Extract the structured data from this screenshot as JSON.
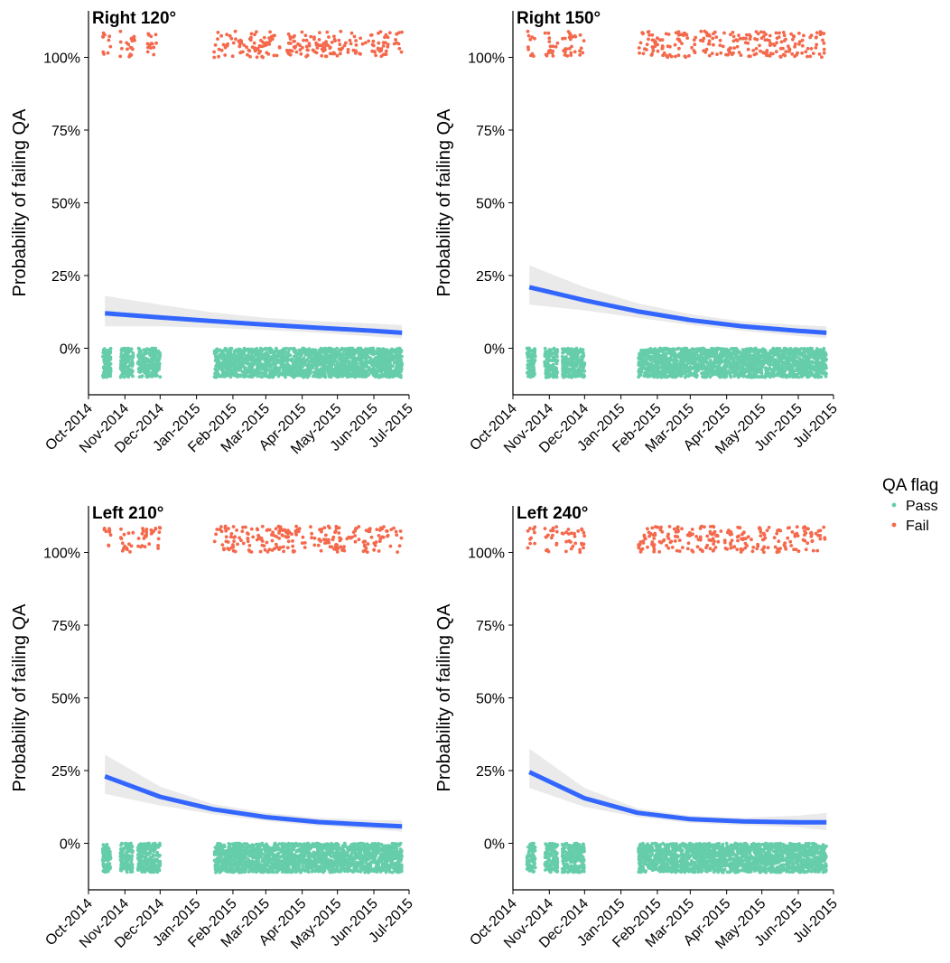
{
  "figure": {
    "legend": {
      "title": "QA flag",
      "position": "right",
      "items": [
        {
          "key": "pass",
          "label": "Pass",
          "color": "#66cdaa"
        },
        {
          "key": "fail",
          "label": "Fail",
          "color": "#f4694c"
        }
      ]
    },
    "trend_color": "#3366ff",
    "ribbon_color": "#d9d9d9"
  },
  "chart_data": [
    {
      "type": "scatter",
      "title": "Right 120°",
      "xlabel": "",
      "ylabel": "Probability of failing QA",
      "x_type": "date",
      "xlim": [
        "2014-10-01",
        "2015-07-01"
      ],
      "x_ticks": [
        "Oct-2014",
        "Nov-2014",
        "Dec-2014",
        "Jan-2015",
        "Feb-2015",
        "Mar-2015",
        "Apr-2015",
        "May-2015",
        "Jun-2015",
        "Jul-2015"
      ],
      "ylim": [
        -0.16,
        1.16
      ],
      "y_ticks": [
        "0%",
        "25%",
        "50%",
        "75%",
        "100%"
      ],
      "grid": false,
      "fail_bands": [
        [
          "2014-10-13",
          "2014-10-20"
        ],
        [
          "2014-10-28",
          "2014-11-10"
        ],
        [
          "2014-11-20",
          "2014-11-30"
        ],
        [
          "2015-01-16",
          "2015-06-25"
        ]
      ],
      "pass_bands": [
        [
          "2014-10-13",
          "2014-10-20"
        ],
        [
          "2014-10-28",
          "2014-11-08"
        ],
        [
          "2014-11-12",
          "2014-12-01"
        ],
        [
          "2015-01-16",
          "2015-06-25"
        ]
      ],
      "trend": {
        "x": [
          "2014-10-15",
          "2014-12-01",
          "2015-01-15",
          "2015-03-01",
          "2015-04-15",
          "2015-06-01",
          "2015-06-25"
        ],
        "y": [
          0.12,
          0.106,
          0.093,
          0.081,
          0.07,
          0.06,
          0.053
        ],
        "lower": [
          0.075,
          0.075,
          0.07,
          0.063,
          0.053,
          0.04,
          0.034
        ],
        "upper": [
          0.18,
          0.15,
          0.123,
          0.105,
          0.093,
          0.085,
          0.08
        ]
      }
    },
    {
      "type": "scatter",
      "title": "Right 150°",
      "xlabel": "",
      "ylabel": "Probability of failing QA",
      "x_type": "date",
      "xlim": [
        "2014-10-01",
        "2015-07-01"
      ],
      "x_ticks": [
        "Oct-2014",
        "Nov-2014",
        "Dec-2014",
        "Jan-2015",
        "Feb-2015",
        "Mar-2015",
        "Apr-2015",
        "May-2015",
        "Jun-2015",
        "Jul-2015"
      ],
      "ylim": [
        -0.16,
        1.16
      ],
      "y_ticks": [
        "0%",
        "25%",
        "50%",
        "75%",
        "100%"
      ],
      "grid": false,
      "fail_bands": [
        [
          "2014-10-13",
          "2014-10-20"
        ],
        [
          "2014-10-28",
          "2014-11-08"
        ],
        [
          "2014-11-12",
          "2014-12-01"
        ],
        [
          "2015-01-16",
          "2015-06-25"
        ]
      ],
      "pass_bands": [
        [
          "2014-10-13",
          "2014-10-20"
        ],
        [
          "2014-10-28",
          "2014-11-08"
        ],
        [
          "2014-11-12",
          "2014-12-01"
        ],
        [
          "2015-01-16",
          "2015-06-25"
        ]
      ],
      "trend": {
        "x": [
          "2014-10-15",
          "2014-12-01",
          "2015-01-15",
          "2015-03-01",
          "2015-04-15",
          "2015-06-01",
          "2015-06-25"
        ],
        "y": [
          0.21,
          0.165,
          0.127,
          0.097,
          0.075,
          0.06,
          0.053
        ],
        "lower": [
          0.15,
          0.13,
          0.105,
          0.08,
          0.06,
          0.042,
          0.035
        ],
        "upper": [
          0.285,
          0.21,
          0.155,
          0.117,
          0.092,
          0.08,
          0.075
        ]
      }
    },
    {
      "type": "scatter",
      "title": "Left 210°",
      "xlabel": "",
      "ylabel": "Probability of failing QA",
      "x_type": "date",
      "xlim": [
        "2014-10-01",
        "2015-07-01"
      ],
      "x_ticks": [
        "Oct-2014",
        "Nov-2014",
        "Dec-2014",
        "Jan-2015",
        "Feb-2015",
        "Mar-2015",
        "Apr-2015",
        "May-2015",
        "Jun-2015",
        "Jul-2015"
      ],
      "ylim": [
        -0.16,
        1.16
      ],
      "y_ticks": [
        "0%",
        "25%",
        "50%",
        "75%",
        "100%"
      ],
      "grid": false,
      "fail_bands": [
        [
          "2014-10-13",
          "2014-10-20"
        ],
        [
          "2014-10-28",
          "2014-11-08"
        ],
        [
          "2014-11-12",
          "2014-12-01"
        ],
        [
          "2015-01-16",
          "2015-06-25"
        ]
      ],
      "pass_bands": [
        [
          "2014-10-13",
          "2014-10-20"
        ],
        [
          "2014-10-28",
          "2014-11-08"
        ],
        [
          "2014-11-12",
          "2014-12-01"
        ],
        [
          "2015-01-16",
          "2015-06-25"
        ]
      ],
      "trend": {
        "x": [
          "2014-10-15",
          "2014-12-01",
          "2015-01-15",
          "2015-03-01",
          "2015-04-15",
          "2015-06-01",
          "2015-06-25"
        ],
        "y": [
          0.23,
          0.16,
          0.117,
          0.09,
          0.073,
          0.063,
          0.058
        ],
        "lower": [
          0.17,
          0.13,
          0.1,
          0.077,
          0.06,
          0.048,
          0.04
        ],
        "upper": [
          0.305,
          0.195,
          0.135,
          0.105,
          0.087,
          0.08,
          0.08
        ]
      }
    },
    {
      "type": "scatter",
      "title": "Left 240°",
      "xlabel": "",
      "ylabel": "Probability of failing QA",
      "x_type": "date",
      "xlim": [
        "2014-10-01",
        "2015-07-01"
      ],
      "x_ticks": [
        "Oct-2014",
        "Nov-2014",
        "Dec-2014",
        "Jan-2015",
        "Feb-2015",
        "Mar-2015",
        "Apr-2015",
        "May-2015",
        "Jun-2015",
        "Jul-2015"
      ],
      "ylim": [
        -0.16,
        1.16
      ],
      "y_ticks": [
        "0%",
        "25%",
        "50%",
        "75%",
        "100%"
      ],
      "grid": false,
      "fail_bands": [
        [
          "2014-10-13",
          "2014-10-20"
        ],
        [
          "2014-10-28",
          "2014-11-08"
        ],
        [
          "2014-11-12",
          "2014-12-01"
        ],
        [
          "2015-01-16",
          "2015-06-25"
        ]
      ],
      "pass_bands": [
        [
          "2014-10-13",
          "2014-10-20"
        ],
        [
          "2014-10-28",
          "2014-11-08"
        ],
        [
          "2014-11-12",
          "2014-12-01"
        ],
        [
          "2015-01-16",
          "2015-06-25"
        ]
      ],
      "trend": {
        "x": [
          "2014-10-15",
          "2014-12-01",
          "2015-01-15",
          "2015-03-01",
          "2015-04-15",
          "2015-06-01",
          "2015-06-25"
        ],
        "y": [
          0.245,
          0.155,
          0.105,
          0.083,
          0.075,
          0.072,
          0.072
        ],
        "lower": [
          0.19,
          0.125,
          0.09,
          0.07,
          0.062,
          0.055,
          0.045
        ],
        "upper": [
          0.325,
          0.19,
          0.12,
          0.095,
          0.088,
          0.095,
          0.105
        ]
      }
    }
  ]
}
